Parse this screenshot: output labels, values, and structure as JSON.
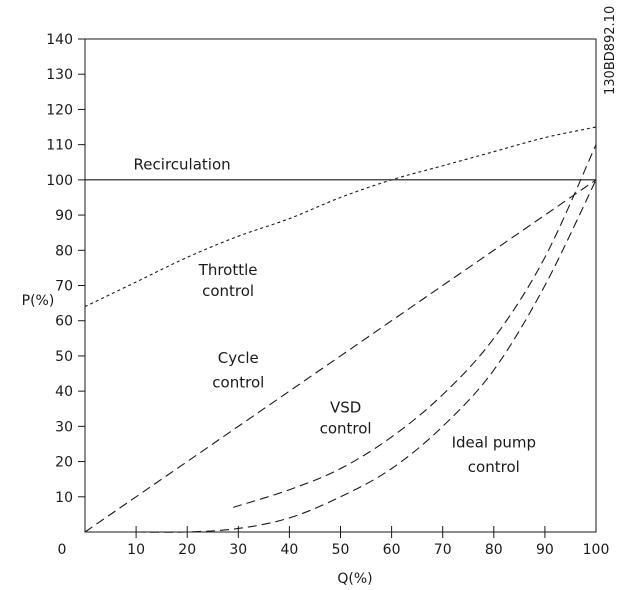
{
  "chart_data": {
    "type": "line",
    "xlabel": "Q(%)",
    "ylabel": "P(%)",
    "xlim": [
      0,
      100
    ],
    "ylim": [
      0,
      140
    ],
    "x_ticks": [
      0,
      10,
      20,
      30,
      40,
      50,
      60,
      70,
      80,
      90,
      100
    ],
    "y_ticks": [
      10,
      20,
      30,
      40,
      50,
      60,
      70,
      80,
      90,
      100,
      110,
      120,
      130,
      140
    ],
    "grid": false,
    "figure_code": "130BD892.10",
    "series": [
      {
        "name": "Recirculation",
        "style": "solid",
        "x": [
          0,
          100
        ],
        "y": [
          100,
          100
        ]
      },
      {
        "name": "Throttle control",
        "style": "dotted",
        "x": [
          0,
          10,
          20,
          30,
          40,
          50,
          60,
          70,
          80,
          90,
          100
        ],
        "y": [
          64,
          71,
          78,
          84,
          89,
          95,
          100,
          104,
          108,
          112,
          115
        ]
      },
      {
        "name": "Cycle control",
        "style": "dashed",
        "x": [
          0,
          25,
          50,
          75,
          100
        ],
        "y": [
          0,
          25,
          50,
          75,
          100
        ]
      },
      {
        "name": "VSD control",
        "style": "dashed",
        "x": [
          29,
          40,
          50,
          60,
          70,
          80,
          90,
          100
        ],
        "y": [
          7,
          12,
          18,
          27,
          39,
          55,
          78,
          110
        ]
      },
      {
        "name": "Ideal pump control",
        "style": "dashed",
        "x": [
          10,
          20,
          30,
          40,
          50,
          60,
          70,
          80,
          90,
          100
        ],
        "y": [
          0,
          0,
          1,
          4,
          10,
          18,
          30,
          46,
          70,
          100
        ]
      }
    ],
    "annotations": [
      {
        "text": "Recirculation",
        "x": 19,
        "y": 103
      },
      {
        "text": "Throttle",
        "x": 28,
        "y": 73
      },
      {
        "text": "control",
        "x": 28,
        "y": 67
      },
      {
        "text": "Cycle",
        "x": 30,
        "y": 48
      },
      {
        "text": "control",
        "x": 30,
        "y": 41
      },
      {
        "text": "VSD",
        "x": 51,
        "y": 34
      },
      {
        "text": "control",
        "x": 51,
        "y": 28
      },
      {
        "text": "Ideal pump",
        "x": 80,
        "y": 24
      },
      {
        "text": "control",
        "x": 80,
        "y": 17
      }
    ]
  }
}
